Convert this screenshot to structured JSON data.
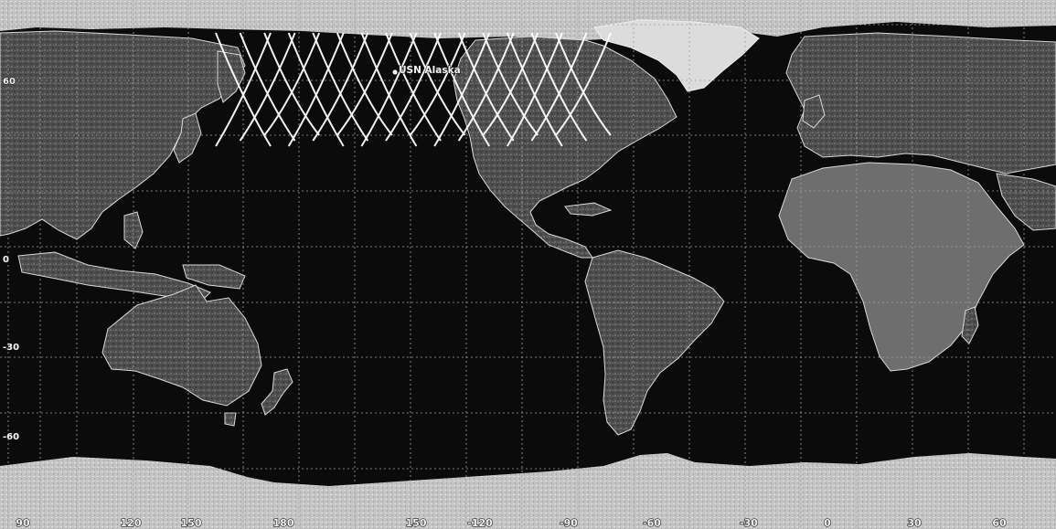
{
  "map": {
    "projection": "equirectangular",
    "colors": {
      "ocean": "#0b0b0b",
      "land": "#565656",
      "ice": "#cfcfcf",
      "coastline": "#d8d8d8",
      "graticule": "#a0a0a0",
      "ground_track": "#ffffff"
    },
    "longitude_labels": [
      "90",
      "120",
      "150",
      "180",
      "150",
      "-120",
      "-90",
      "-60",
      "-30",
      "0",
      "30",
      "60"
    ],
    "latitude_labels": [
      "60",
      "0",
      "-30",
      "-60"
    ],
    "station": {
      "name": "USN Alaska",
      "marker_icon": "ground-station-marker"
    },
    "features": [
      "asia",
      "australia",
      "north-america",
      "south-america",
      "africa",
      "europe",
      "greenland",
      "antarctica",
      "arctic-ice",
      "new-zealand",
      "madagascar"
    ],
    "ground_track": {
      "description": "satellite ground track passes over station",
      "passes_shown": 14
    }
  }
}
